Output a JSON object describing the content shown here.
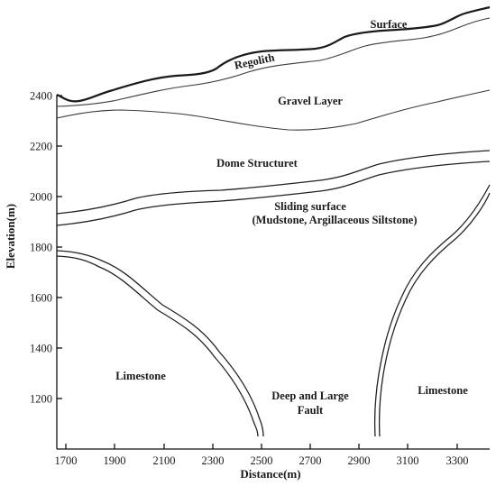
{
  "axes": {
    "x_title": "Distance(m)",
    "y_title": "Elevation(m)",
    "x_ticks": [
      "1700",
      "1900",
      "2100",
      "2300",
      "2500",
      "2700",
      "2900",
      "3100",
      "3300"
    ],
    "y_ticks": [
      "1200",
      "1400",
      "1600",
      "1800",
      "2000",
      "2200",
      "2400"
    ]
  },
  "labels": {
    "surface": "Surface",
    "regolith": "Regolith",
    "gravel_layer": "Gravel Layer",
    "dome_structure": "Dome Structuret",
    "sliding_surface": "Sliding surface",
    "sliding_surface_detail": "(Mudstone, Argillaceous Siltstone)",
    "limestone_left": "Limestone",
    "limestone_right": "Limestone",
    "fault_line1": "Deep and Large",
    "fault_line2": "Fault"
  }
}
